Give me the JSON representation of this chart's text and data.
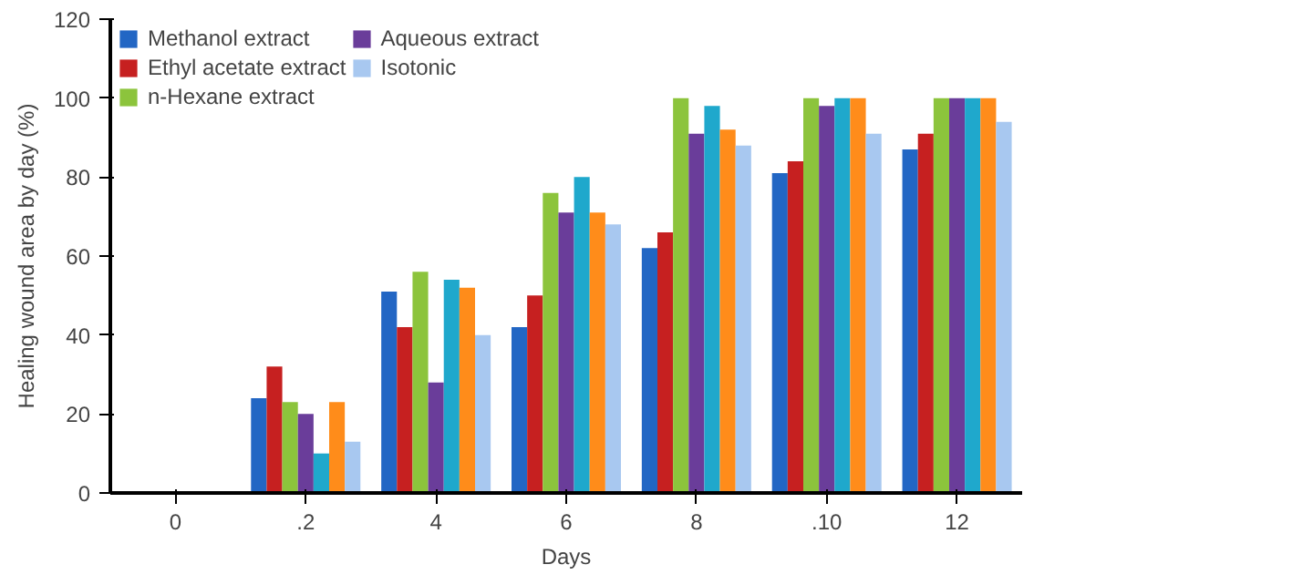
{
  "chart_data": {
    "type": "bar",
    "xlabel": "Days",
    "ylabel": "Healing wound area by day (%)",
    "categories": [
      "0",
      ".2",
      "4",
      "6",
      "8",
      ".10",
      "12"
    ],
    "ylim": [
      0,
      120
    ],
    "yticks": [
      0,
      20,
      40,
      60,
      80,
      100,
      120
    ],
    "grid": false,
    "legend": "top left",
    "series": [
      {
        "name": "Methanol extract",
        "color": "#2266c4",
        "values": [
          0,
          24,
          51,
          42,
          62,
          81,
          87
        ]
      },
      {
        "name": "Ethyl acetate extract",
        "color": "#c62020",
        "values": [
          0,
          32,
          42,
          50,
          66,
          84,
          91
        ]
      },
      {
        "name": "n-Hexane extract",
        "color": "#8cc43c",
        "values": [
          0,
          23,
          56,
          76,
          100,
          100,
          100
        ]
      },
      {
        "name": "Aqueous extract",
        "color": "#6a3d9a",
        "values": [
          0,
          20,
          28,
          71,
          91,
          98,
          100
        ]
      },
      {
        "color": "#1fa8cc",
        "values": [
          0,
          10,
          54,
          80,
          98,
          100,
          100
        ]
      },
      {
        "color": "#ff8c1a",
        "values": [
          0,
          23,
          52,
          71,
          92,
          100,
          100
        ]
      },
      {
        "name": "Isotonic",
        "color": "#a8c8f0",
        "values": [
          0,
          13,
          40,
          68,
          88,
          91,
          94
        ]
      }
    ]
  }
}
